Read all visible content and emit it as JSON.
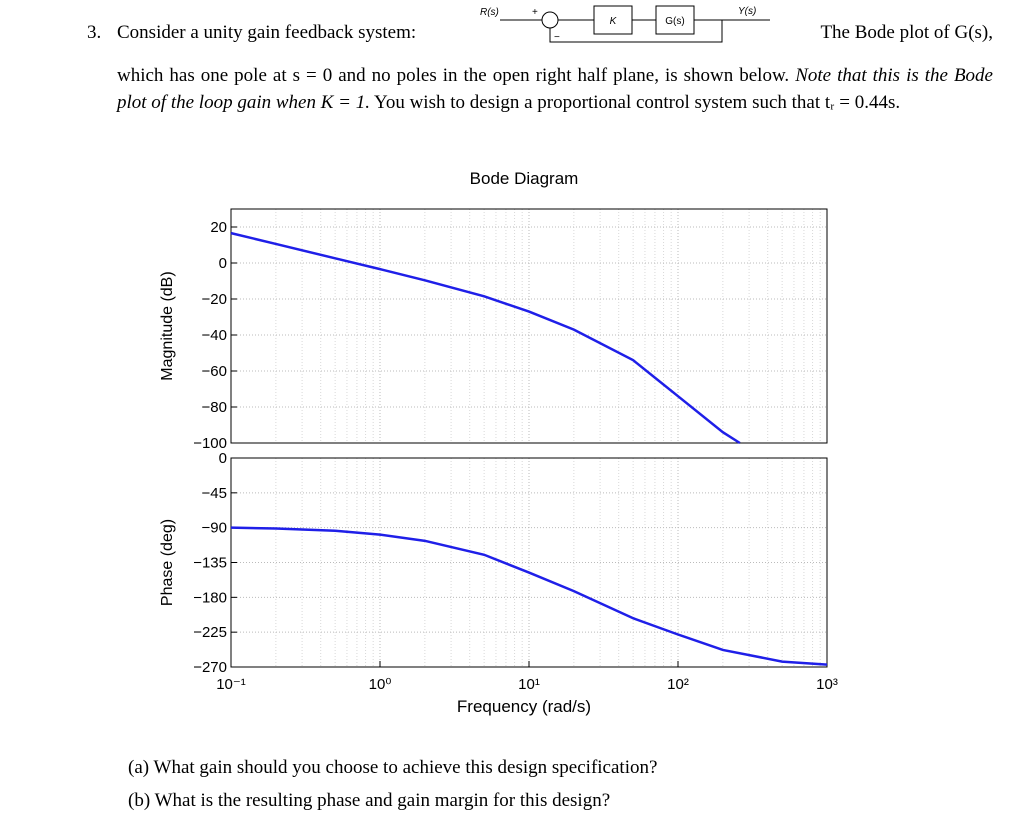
{
  "problem": {
    "number": "3.",
    "intro": "Consider a unity gain feedback system:",
    "bode_intro": "The Bode plot of G(s),",
    "text": "which has one pole at s = 0 and no poles in the open right half plane, is shown below.",
    "note": "Note that this is the Bode plot of the loop gain when K = 1.",
    "task": "You wish to design a proportional control system such that tᵣ = 0.44s."
  },
  "diagram": {
    "input": "R(s)",
    "plus": "+",
    "minus": "−",
    "gain": "K",
    "plant": "G(s)",
    "output": "Y(s)"
  },
  "questions": [
    {
      "label": "(a)",
      "text": "What gain should you choose to achieve this design specification?"
    },
    {
      "label": "(b)",
      "text": "What is the resulting phase and gain margin for this design?"
    }
  ],
  "chart_data": [
    {
      "type": "line",
      "title": "Bode Diagram",
      "ylabel": "Magnitude (dB)",
      "xscale": "log",
      "grid": true,
      "xlim": [
        0.1,
        1000
      ],
      "ylim": [
        -100,
        30
      ],
      "yticks": [
        20,
        0,
        {
          "value": -20,
          "label": "−20"
        },
        {
          "value": -40,
          "label": "−40"
        },
        {
          "value": -60,
          "label": "−60"
        },
        {
          "value": -80,
          "label": "−80"
        },
        {
          "value": -100,
          "label": "−100"
        }
      ],
      "x": [
        0.1,
        0.2,
        0.5,
        1,
        2,
        5,
        10,
        20,
        50,
        100,
        200,
        260
      ],
      "series": [
        {
          "color": "#1f1fe8",
          "values": [
            16.6,
            10.6,
            2.6,
            -3.4,
            -9.6,
            -18.5,
            -27,
            -37,
            -54,
            -74,
            -94,
            -100
          ]
        }
      ]
    },
    {
      "type": "line",
      "ylabel": "Phase (deg)",
      "xlabel": "Frequency (rad/s)",
      "xscale": "log",
      "grid": true,
      "xlim": [
        0.1,
        1000
      ],
      "ylim": [
        -270,
        0
      ],
      "xticks": [
        {
          "value": 0.1,
          "label": "10⁻¹"
        },
        {
          "value": 1,
          "label": "10⁰"
        },
        {
          "value": 10,
          "label": "10¹"
        },
        {
          "value": 100,
          "label": "10²"
        },
        {
          "value": 1000,
          "label": "10³"
        }
      ],
      "yticks": [
        0,
        {
          "value": -45,
          "label": "−45"
        },
        {
          "value": -90,
          "label": "−90"
        },
        {
          "value": -135,
          "label": "−135"
        },
        {
          "value": -180,
          "label": "−180"
        },
        {
          "value": -225,
          "label": "−225"
        },
        {
          "value": -270,
          "label": "−270"
        }
      ],
      "x": [
        0.1,
        0.2,
        0.5,
        1,
        2,
        5,
        10,
        20,
        50,
        100,
        200,
        500,
        1000
      ],
      "series": [
        {
          "color": "#1f1fe8",
          "values": [
            -90,
            -91,
            -94,
            -99,
            -107,
            -125,
            -148,
            -172,
            -207,
            -228,
            -248,
            -263,
            -267
          ]
        }
      ]
    }
  ]
}
